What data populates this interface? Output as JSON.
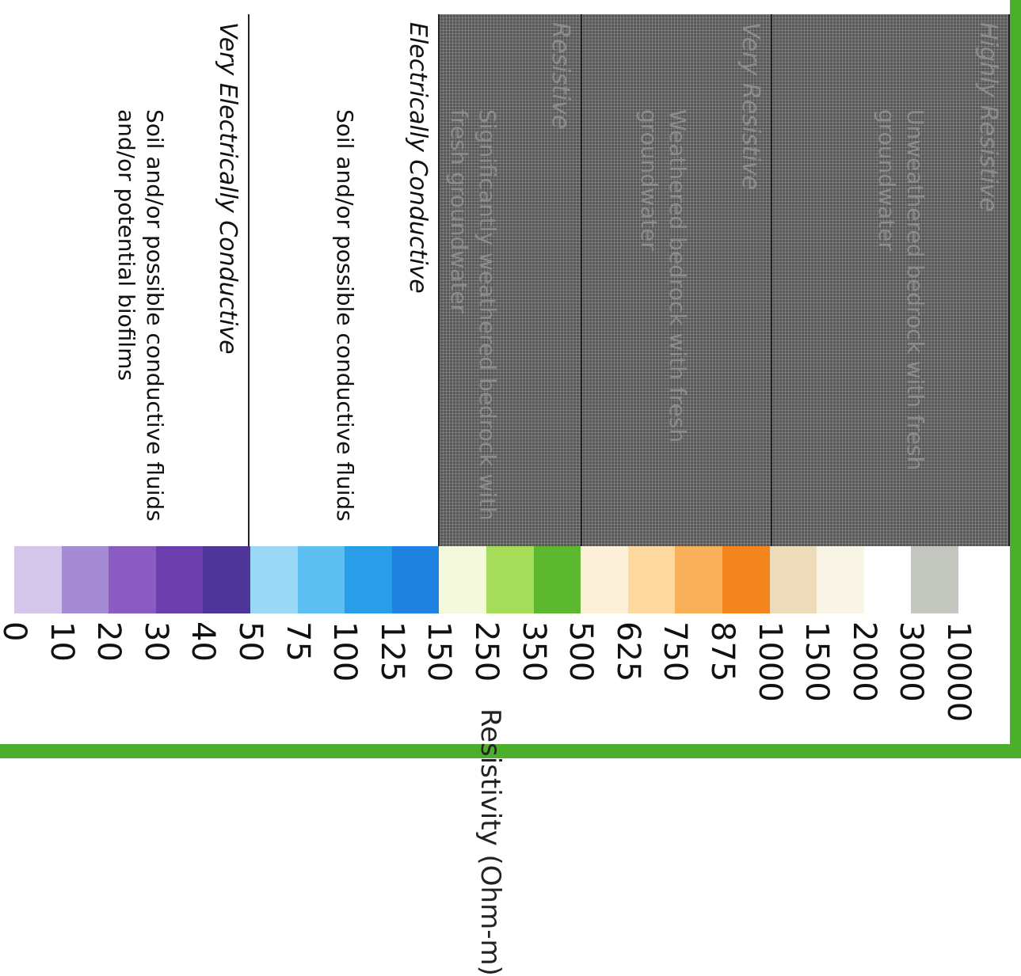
{
  "scale": {
    "axis_label": "Resistivity (Ohm-m)",
    "ticks": [
      "0",
      "10",
      "20",
      "30",
      "40",
      "50",
      "75",
      "100",
      "125",
      "150",
      "250",
      "350",
      "500",
      "625",
      "750",
      "875",
      "1000",
      "1500",
      "2000",
      "3000",
      "10000"
    ],
    "swatch_colors": [
      "#d4c6ea",
      "#a58bd2",
      "#8a5bc0",
      "#6b3fae",
      "#4e3599",
      "#9ad8f5",
      "#5ec0f2",
      "#2a9de8",
      "#1f82e0",
      "#f4f8dc",
      "#a5dc5a",
      "#5cb82e",
      "#fdf0d8",
      "#fdd9a0",
      "#f9b05a",
      "#f4861f",
      "#ecdcba",
      "#f8f5e6",
      "#ffffff",
      "#c4c6c0"
    ]
  },
  "zones": [
    {
      "title": "Highly Resistive",
      "description": "Unweathered bedrock with fresh groundwater",
      "shaded": true
    },
    {
      "title": "Very Resistive",
      "description": "Weathered bedrock with fresh groundwater",
      "shaded": true
    },
    {
      "title": "Resistive",
      "description": "Significantly weathered bedrock with fresh groundwater",
      "shaded": true
    },
    {
      "title": "Electrically Conductive",
      "description": "Soil and/or possible conductive fluids",
      "shaded": false
    },
    {
      "title": "Very Electrically Conductive",
      "description": "Soil and/or possible conductive fluids and/or potential biofilms",
      "shaded": false
    }
  ]
}
